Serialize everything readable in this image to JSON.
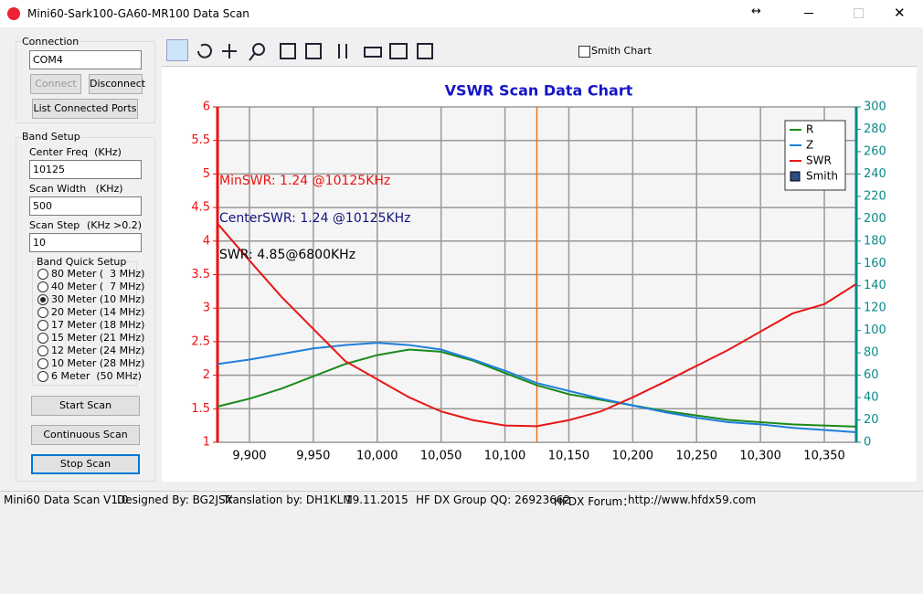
{
  "window": {
    "title": "Mini60-Sark100-GA60-MR100 Data Scan",
    "resize_icon": "↔"
  },
  "connection": {
    "title": "Connection",
    "port": "COM4",
    "connect": "Connect",
    "disconnect": "Disconnect",
    "list_ports": "List Connected Ports"
  },
  "band_setup": {
    "title": "Band Setup",
    "center_freq_label": "Center Freq  (KHz)",
    "center_freq": "10125",
    "scan_width_label": "Scan Width   (KHz)",
    "scan_width": "500",
    "scan_step_label": "Scan Step",
    "scan_step_hint": "(KHz >0.2)",
    "scan_step": "10",
    "quick_title": "Band Quick Setup",
    "options": [
      "80 Meter (  3 MHz)",
      "40 Meter (  7 MHz)",
      "30 Meter (10 MHz)",
      "20 Meter (14 MHz)",
      "17 Meter (18 MHz)",
      "15 Meter (21 MHz)",
      "12 Meter (24 MHz)",
      "10 Meter (28 MHz)",
      "6 Meter  (50 MHz)"
    ],
    "selected": 2
  },
  "buttons": {
    "start": "Start Scan",
    "continuous": "Continuous Scan",
    "stop": "Stop Scan"
  },
  "toolbar": {
    "smith_chart": "Smith Chart"
  },
  "status": {
    "version": "Mini60 Data Scan V1.0",
    "designed": "Designed By: BG2JSX",
    "translation": "Translation by: DH1KLM",
    "date": "19.11.2015",
    "group": "HF DX Group QQ: 26923662",
    "forum": "HFDX Forum：",
    "url": "http://www.hfdx59.com"
  },
  "chart_data": {
    "type": "line",
    "title": "VSWR Scan Data Chart",
    "x": [
      9875,
      9900,
      9925,
      9950,
      9975,
      10000,
      10025,
      10050,
      10075,
      10100,
      10125,
      10150,
      10175,
      10200,
      10225,
      10250,
      10275,
      10300,
      10325,
      10350,
      10375
    ],
    "xlim": [
      9875,
      10375
    ],
    "xticks": [
      {
        "value": 9900,
        "label": "9,900"
      },
      {
        "value": 9950,
        "label": "9,950"
      },
      {
        "value": 10000,
        "label": "10,000"
      },
      {
        "value": 10050,
        "label": "10,050"
      },
      {
        "value": 10100,
        "label": "10,100"
      },
      {
        "value": 10150,
        "label": "10,150"
      },
      {
        "value": 10200,
        "label": "10,200"
      },
      {
        "value": 10250,
        "label": "10,250"
      },
      {
        "value": 10300,
        "label": "10,300"
      },
      {
        "value": 10350,
        "label": "10,350"
      }
    ],
    "ylim": [
      1,
      6
    ],
    "yticks": [
      1,
      1.5,
      2,
      2.5,
      3,
      3.5,
      4,
      4.5,
      5,
      5.5,
      6
    ],
    "y2lim": [
      0,
      300
    ],
    "y2ticks": [
      0,
      20,
      40,
      60,
      80,
      100,
      120,
      140,
      160,
      180,
      200,
      220,
      240,
      260,
      280,
      300
    ],
    "grid": true,
    "center_marker": 10125,
    "series": [
      {
        "name": "R",
        "color": "#1a8a1a",
        "axis": "y2",
        "values": [
          32,
          39,
          48,
          59,
          70,
          78,
          83,
          81,
          73,
          62,
          51,
          43,
          38,
          33,
          28,
          24,
          20,
          18,
          16,
          15,
          14
        ]
      },
      {
        "name": "Z",
        "color": "#1e7fdc",
        "axis": "y2",
        "values": [
          70,
          74,
          79,
          84,
          87,
          89,
          87,
          83,
          74,
          64,
          53,
          46,
          39,
          33,
          27,
          22,
          18,
          16,
          13,
          11,
          9
        ]
      },
      {
        "name": "SWR",
        "color": "#e81616",
        "axis": "y",
        "values": [
          4.26,
          3.71,
          3.17,
          2.69,
          2.21,
          1.94,
          1.67,
          1.46,
          1.33,
          1.25,
          1.24,
          1.33,
          1.46,
          1.67,
          1.9,
          2.14,
          2.38,
          2.65,
          2.92,
          3.06,
          3.36
        ]
      }
    ],
    "smith_legend": "Smith",
    "legend_position": "upper right",
    "annotations": [
      "MinSWR: 1.24 @10125KHz",
      "CenterSWR: 1.24 @10125KHz",
      "SWR: 4.85@6800KHz"
    ]
  }
}
